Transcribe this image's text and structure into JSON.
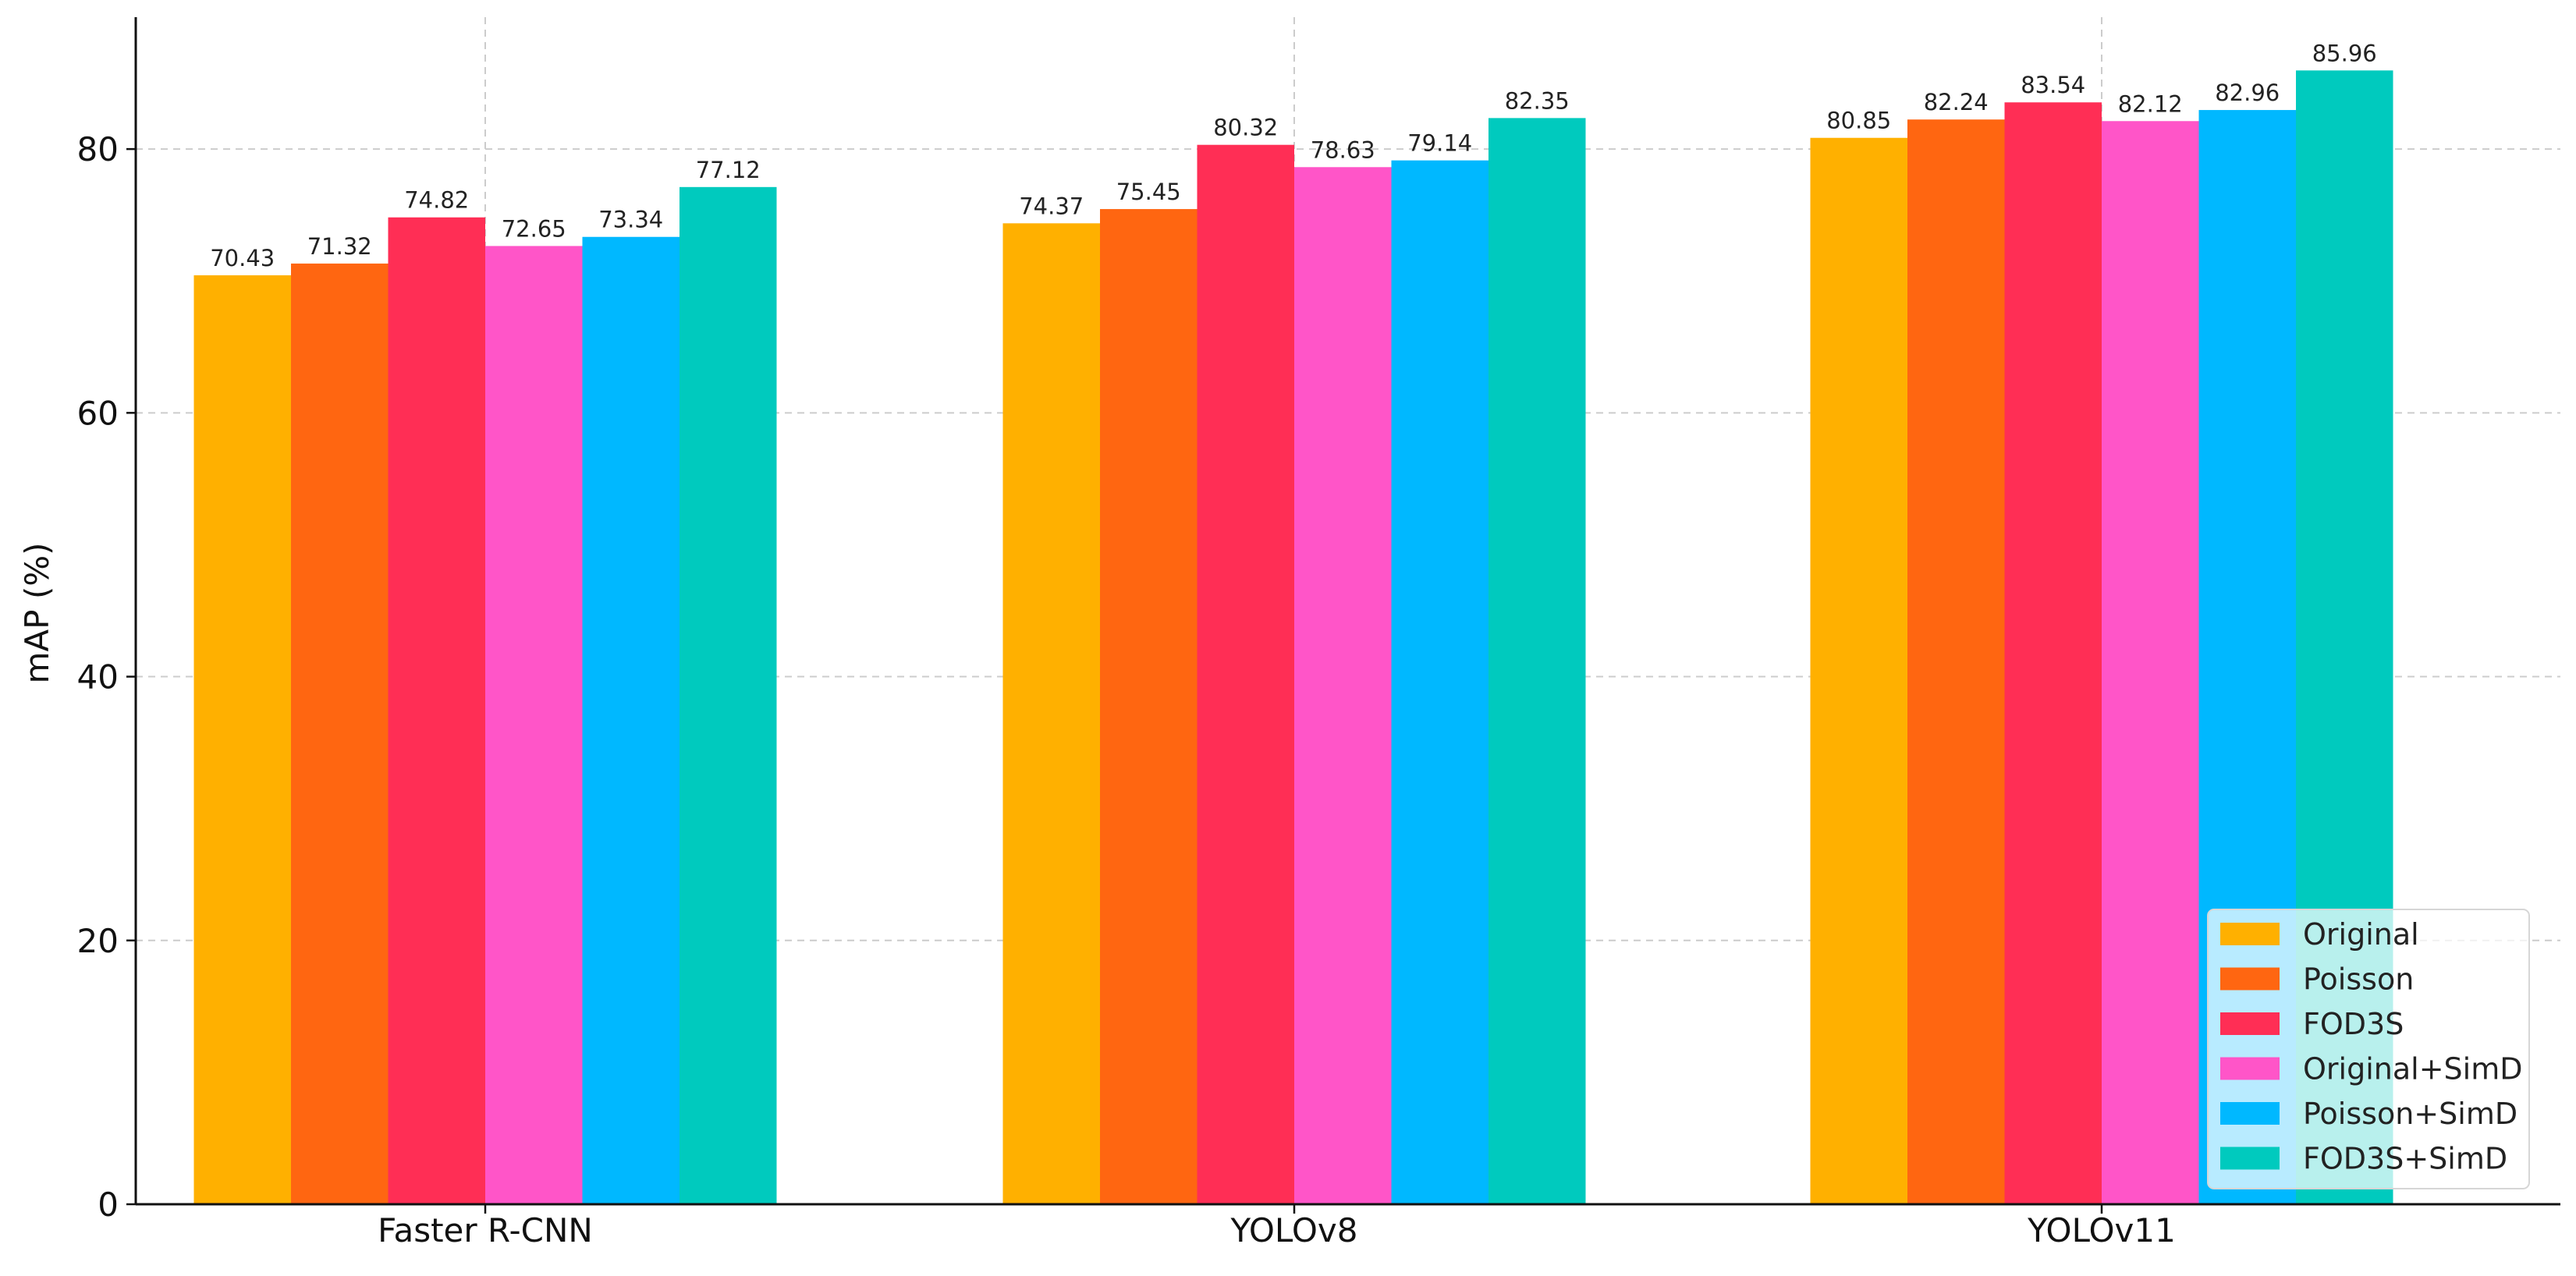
{
  "chart_data": {
    "type": "bar",
    "title": "",
    "xlabel": "",
    "ylabel": "mAP (%)",
    "ylim": [
      0,
      90
    ],
    "yticks": [
      0,
      20,
      40,
      60,
      80
    ],
    "grid": true,
    "legend_position": "bottom-right",
    "categories": [
      "Faster R-CNN",
      "YOLOv8",
      "YOLOv11"
    ],
    "series": [
      {
        "name": "Original",
        "color": "#FFB000",
        "values": [
          70.43,
          74.37,
          80.85
        ]
      },
      {
        "name": "Poisson",
        "color": "#FF6611",
        "values": [
          71.32,
          75.45,
          82.24
        ]
      },
      {
        "name": "FOD3S",
        "color": "#FF2E55",
        "values": [
          74.82,
          80.32,
          83.54
        ]
      },
      {
        "name": "Original+SimD",
        "color": "#FF55C8",
        "values": [
          72.65,
          78.63,
          82.12
        ]
      },
      {
        "name": "Poisson+SimD",
        "color": "#00B8FF",
        "values": [
          73.34,
          79.14,
          82.96
        ]
      },
      {
        "name": "FOD3S+SimD",
        "color": "#00CABE",
        "values": [
          77.12,
          82.35,
          85.96
        ]
      }
    ]
  }
}
